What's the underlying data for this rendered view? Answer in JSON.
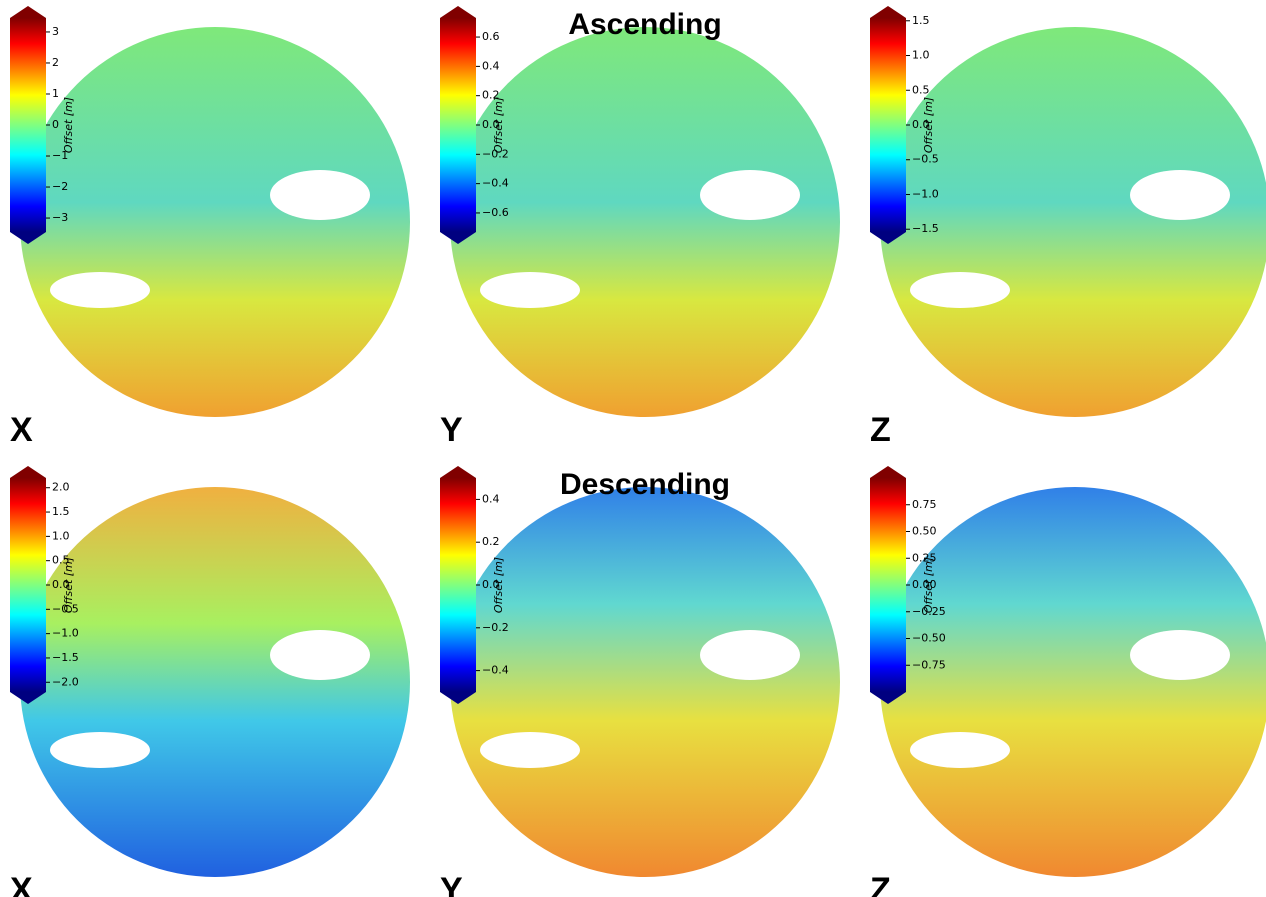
{
  "sections": [
    {
      "title": "Ascending",
      "panels": [
        {
          "label": "X",
          "colorbar": {
            "label": "Offset [m]",
            "lim": [
              -3.45,
              3.45
            ],
            "ticks": [
              3,
              2,
              1,
              0,
              {
                "value": -1,
                "label": "−1"
              },
              {
                "value": -2,
                "label": "−2"
              },
              {
                "value": -3,
                "label": "−3"
              }
            ]
          }
        },
        {
          "label": "Y",
          "colorbar": {
            "label": "Offset [m]",
            "lim": [
              -0.73,
              0.73
            ],
            "ticks": [
              0.6,
              0.4,
              0.2,
              {
                "value": 0,
                "label": "0.0"
              },
              {
                "value": -0.2,
                "label": "−0.2"
              },
              {
                "value": -0.4,
                "label": "−0.4"
              },
              {
                "value": -0.6,
                "label": "−0.6"
              }
            ]
          }
        },
        {
          "label": "Z",
          "colorbar": {
            "label": "Offset [m]",
            "lim": [
              -1.54,
              1.54
            ],
            "ticks": [
              1.5,
              {
                "value": 1,
                "label": "1.0"
              },
              0.5,
              {
                "value": 0,
                "label": "0.0"
              },
              {
                "value": -0.5,
                "label": "−0.5"
              },
              {
                "value": -1,
                "label": "−1.0"
              },
              {
                "value": -1.5,
                "label": "−1.5"
              }
            ]
          }
        }
      ]
    },
    {
      "title": "Descending",
      "panels": [
        {
          "label": "X",
          "colorbar": {
            "label": "Offset [m]",
            "lim": [
              -2.2,
              2.2
            ],
            "ticks": [
              {
                "value": 2,
                "label": "2.0"
              },
              1.5,
              {
                "value": 1,
                "label": "1.0"
              },
              0.5,
              {
                "value": 0,
                "label": "0.0"
              },
              {
                "value": -0.5,
                "label": "−0.5"
              },
              {
                "value": -1,
                "label": "−1.0"
              },
              {
                "value": -1.5,
                "label": "−1.5"
              },
              {
                "value": -2,
                "label": "−2.0"
              }
            ]
          }
        },
        {
          "label": "Y",
          "colorbar": {
            "label": "Offset [m]",
            "lim": [
              -0.5,
              0.5
            ],
            "ticks": [
              0.4,
              0.2,
              {
                "value": 0,
                "label": "0.0"
              },
              {
                "value": -0.2,
                "label": "−0.2"
              },
              {
                "value": -0.4,
                "label": "−0.4"
              }
            ]
          }
        },
        {
          "label": "Z",
          "colorbar": {
            "label": "Offset [m]",
            "lim": [
              -1,
              1
            ],
            "ticks": [
              0.75,
              {
                "value": 0.5,
                "label": "0.50"
              },
              0.25,
              {
                "value": 0,
                "label": "0.00"
              },
              {
                "value": -0.25,
                "label": "−0.25"
              },
              {
                "value": -0.5,
                "label": "−0.50"
              },
              {
                "value": -0.75,
                "label": "−0.75"
              }
            ]
          }
        }
      ]
    }
  ]
}
